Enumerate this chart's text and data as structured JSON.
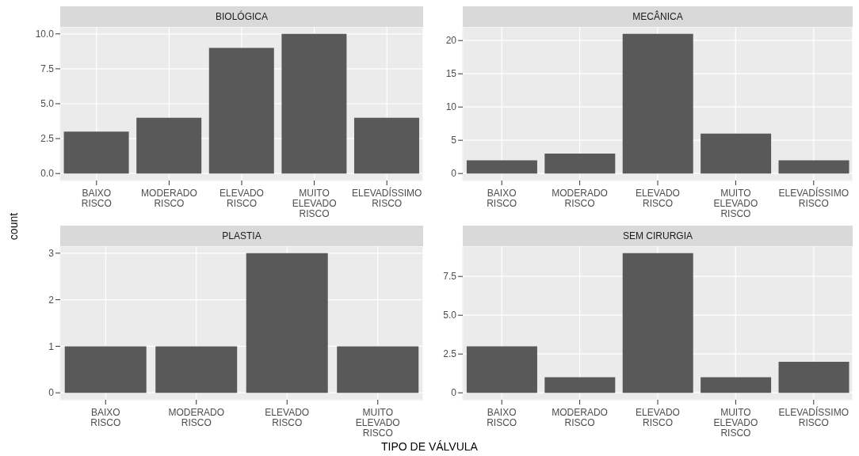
{
  "chart_data": [
    {
      "type": "bar",
      "title": "BIOLÓGICA",
      "ylabel": "count",
      "categories": [
        "BAIXO RISCO",
        "MODERADO RISCO",
        "ELEVADO RISCO",
        "MUITO ELEVADO RISCO",
        "ELEVADÍSSIMO RISCO"
      ],
      "values": [
        3,
        4,
        9,
        10,
        4
      ],
      "color": "#595959",
      "ylim": [
        -0.5,
        10.5
      ],
      "yticks": [
        {
          "value": 0,
          "label": "0.0"
        },
        2.5,
        {
          "value": 5,
          "label": "5.0"
        },
        7.5,
        {
          "value": 10,
          "label": "10.0"
        }
      ],
      "grid": true
    },
    {
      "type": "bar",
      "title": "MECÂNICA",
      "categories": [
        "BAIXO RISCO",
        "MODERADO RISCO",
        "ELEVADO RISCO",
        "MUITO ELEVADO RISCO",
        "ELEVADÍSSIMO RISCO"
      ],
      "values": [
        2,
        3,
        21,
        6,
        2
      ],
      "color": "#595959",
      "ylim": [
        -1.05,
        22.05
      ],
      "yticks": [
        0,
        5,
        10,
        15,
        20
      ],
      "grid": true
    },
    {
      "type": "bar",
      "title": "PLASTIA",
      "categories": [
        "BAIXO RISCO",
        "MODERADO RISCO",
        "ELEVADO RISCO",
        "MUITO ELEVADO RISCO"
      ],
      "values": [
        1,
        1,
        3,
        1
      ],
      "color": "#595959",
      "ylim": [
        -0.15,
        3.15
      ],
      "yticks": [
        0,
        1,
        2,
        3
      ],
      "grid": true
    },
    {
      "type": "bar",
      "title": "SEM CIRURGIA",
      "xlabel": "TIPO DE VÁLVULA",
      "categories": [
        "BAIXO RISCO",
        "MODERADO RISCO",
        "ELEVADO RISCO",
        "MUITO ELEVADO RISCO",
        "ELEVADÍSSIMO RISCO"
      ],
      "values": [
        3,
        1,
        9,
        1,
        2
      ],
      "color": "#595959",
      "ylim": [
        -0.45,
        9.45
      ],
      "yticks": [
        0,
        2.5,
        {
          "value": 5,
          "label": "5.0"
        },
        7.5
      ],
      "grid": true
    }
  ]
}
